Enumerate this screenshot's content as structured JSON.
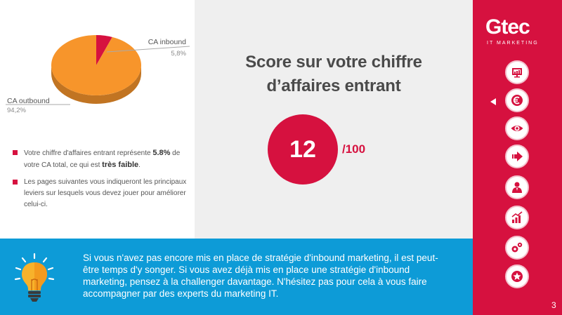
{
  "chart_data": {
    "type": "pie",
    "slices": [
      {
        "label": "CA inbound",
        "value": 5.8,
        "display": "5,8%",
        "color": "#d6113f"
      },
      {
        "label": "CA outbound",
        "value": 94.2,
        "display": "94,2%",
        "color": "#f7952b"
      }
    ],
    "legend": "labels-beside-slices"
  },
  "left": {
    "bullets": [
      {
        "text_before": "Votre chiffre d'affaires entrant représente ",
        "highlight": "5.8%",
        "text_middle": " de votre CA total, ce qui est ",
        "highlight2": "très faible",
        "text_after": "."
      },
      {
        "text": "Les pages suivantes vous indiqueront les principaux leviers sur lesquels vous devez jouer pour améliorer celui-ci."
      }
    ]
  },
  "center": {
    "title_line1": "Score sur votre chiffre",
    "title_line2": "d’affaires entrant",
    "score": "12",
    "score_total": "/100"
  },
  "sidebar": {
    "logo_text": "Gtec",
    "logo_subtitle": "IT MARKETING",
    "nav_items": [
      {
        "icon": "presentation-icon"
      },
      {
        "icon": "euro-icon"
      },
      {
        "icon": "eye-icon"
      },
      {
        "icon": "arrow-right-icon"
      },
      {
        "icon": "person-icon"
      },
      {
        "icon": "chart-icon"
      },
      {
        "icon": "gears-icon"
      },
      {
        "icon": "star-icon"
      }
    ],
    "page_number": "3"
  },
  "banner": {
    "text": "Si vous n'avez pas encore mis en place de stratégie d'inbound marketing, il est peut-être temps d'y songer. Si vous avez déjà mis en place une stratégie d'inbound marketing, pensez à la challenger davantage. N'hésitez pas pour cela à vous faire accompagner par des experts du marketing IT."
  },
  "colors": {
    "accent": "#d6113f",
    "banner": "#0d9bd7",
    "outbound": "#f7952b"
  }
}
